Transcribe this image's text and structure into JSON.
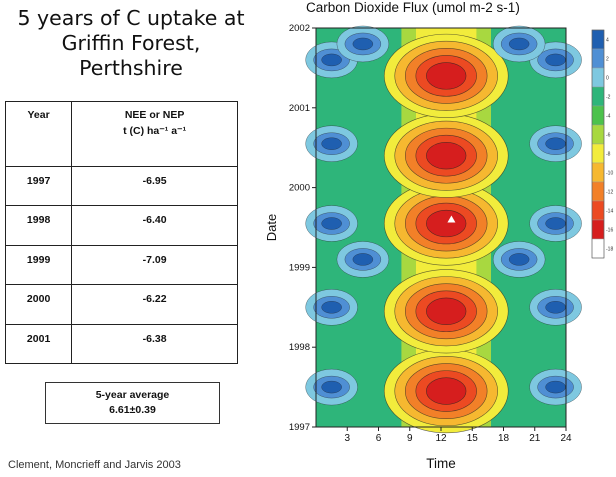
{
  "left_panel": {
    "title_lines": [
      "5 years of C uptake at",
      "Griffin Forest,",
      "Perthshire"
    ],
    "table": {
      "headers": {
        "year": "Year",
        "nee_line1": "NEE or NEP",
        "nee_line2": "t (C) ha⁻¹ a⁻¹"
      },
      "rows": [
        {
          "year": "1997",
          "value": "-6.95"
        },
        {
          "year": "1998",
          "value": "-6.40"
        },
        {
          "year": "1999",
          "value": "-7.09"
        },
        {
          "year": "2000",
          "value": "-6.22"
        },
        {
          "year": "2001",
          "value": "-6.38"
        }
      ]
    },
    "average": {
      "label": "5-year average",
      "value": "6.61±0.39"
    },
    "citation": "Clement, Moncrieff and Jarvis 2003"
  },
  "chart_data": {
    "type": "heatmap",
    "title": "Carbon Dioxide Flux (umol m-2 s-1)",
    "xlabel": "Time",
    "ylabel": "Date",
    "xlim": [
      0,
      24
    ],
    "ylim": [
      1997,
      2002
    ],
    "x_ticks": [
      3,
      6,
      9,
      12,
      15,
      18,
      21,
      24
    ],
    "y_ticks": [
      1997,
      1998,
      1999,
      2000,
      2001,
      2002
    ],
    "colorbar": {
      "labels": [
        "4",
        "2",
        "0",
        "-2",
        "-4",
        "-6",
        "-8",
        "-10",
        "-12",
        "-14",
        "-16",
        "-18"
      ],
      "colors": [
        "#1f5fb0",
        "#4f8fd4",
        "#7ec8e0",
        "#2eb57a",
        "#4cc24c",
        "#a8d840",
        "#f2ec3c",
        "#f6b830",
        "#f28028",
        "#ec4a22",
        "#d61e1e",
        "#ffffff"
      ]
    },
    "summer_minima": [
      {
        "x": 12.5,
        "y": 1997.45,
        "value": -16
      },
      {
        "x": 12.5,
        "y": 1998.45,
        "value": -15
      },
      {
        "x": 12.5,
        "y": 1999.55,
        "value": -17
      },
      {
        "x": 12.5,
        "y": 2000.4,
        "value": -15
      },
      {
        "x": 12.5,
        "y": 2001.4,
        "value": -16
      }
    ],
    "peak_marker": {
      "x": 13,
      "y": 1999.6
    }
  }
}
